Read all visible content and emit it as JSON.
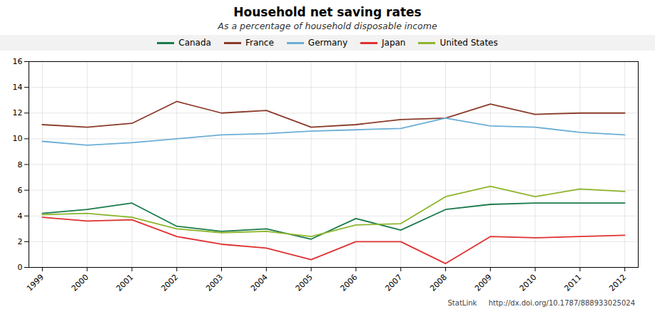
{
  "chart_data": {
    "type": "line",
    "title": "Household net saving rates",
    "subtitle": "As a percentage of household disposable income",
    "caption": "StatLink    http://dx.doi.org/10.1787/888933025024",
    "x": [
      1999,
      2000,
      2001,
      2002,
      2003,
      2004,
      2005,
      2006,
      2007,
      2008,
      2009,
      2010,
      2011,
      2012
    ],
    "series": [
      {
        "name": "Canada",
        "color": "#1a7a4a",
        "values": [
          4.2,
          4.5,
          5.0,
          3.2,
          2.8,
          3.0,
          2.2,
          3.8,
          2.9,
          4.5,
          4.9,
          5.0,
          5.0,
          5.0
        ]
      },
      {
        "name": "France",
        "color": "#8b3a2a",
        "values": [
          11.1,
          10.9,
          11.2,
          12.9,
          12.0,
          12.2,
          10.9,
          11.1,
          11.5,
          11.6,
          12.7,
          11.9,
          12.0,
          12.0
        ]
      },
      {
        "name": "Germany",
        "color": "#6baed6",
        "values": [
          9.8,
          9.5,
          9.7,
          10.0,
          10.3,
          10.4,
          10.6,
          10.7,
          10.8,
          11.6,
          11.0,
          10.9,
          10.5,
          10.3
        ]
      },
      {
        "name": "Japan",
        "color": "#e03030",
        "values": [
          3.9,
          3.6,
          3.7,
          2.4,
          1.8,
          1.5,
          0.6,
          2.0,
          2.0,
          0.3,
          2.4,
          2.3,
          2.4,
          2.5
        ]
      },
      {
        "name": "United States",
        "color": "#8db52a",
        "values": [
          4.1,
          4.2,
          3.9,
          3.0,
          2.7,
          2.8,
          2.4,
          3.3,
          3.4,
          5.5,
          6.3,
          5.5,
          6.1,
          5.9
        ]
      }
    ],
    "xlim": [
      1998.7,
      2012.3
    ],
    "xticks": [
      1999,
      2000,
      2001,
      2002,
      2003,
      2004,
      2005,
      2006,
      2007,
      2008,
      2009,
      2010,
      2011,
      2012
    ],
    "ylim": [
      0,
      16
    ],
    "yticks": [
      0,
      2,
      4,
      6,
      8,
      10,
      12,
      14,
      16
    ],
    "grid": true,
    "legend": "top"
  }
}
